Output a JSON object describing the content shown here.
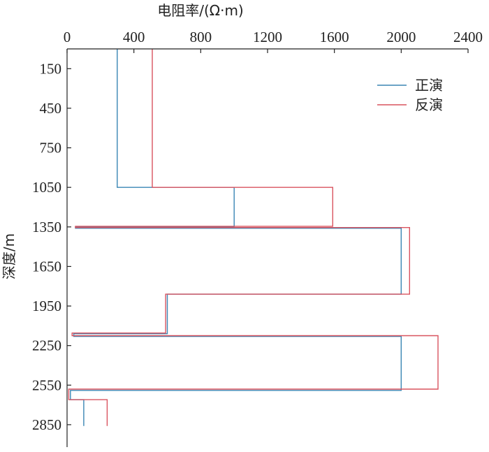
{
  "chart_data": {
    "type": "line",
    "xlabel": "电阻率/(Ω·m)",
    "ylabel": "深度/m",
    "x_axis_position": "top",
    "y_axis_inverted": true,
    "xlim": [
      0,
      2400
    ],
    "ylim": [
      0,
      3020
    ],
    "x_ticks": [
      "0",
      "400",
      "800",
      "1200",
      "1600",
      "2000",
      "2400"
    ],
    "y_ticks": [
      "150",
      "450",
      "750",
      "1050",
      "1350",
      "1650",
      "1950",
      "2250",
      "2550",
      "2850"
    ],
    "grid": false,
    "legend_position": "top-right",
    "series": [
      {
        "name": "正演",
        "color": "#3a86b4",
        "points": [
          [
            300,
            0
          ],
          [
            300,
            1050
          ],
          [
            1000,
            1050
          ],
          [
            1000,
            1350
          ],
          [
            50,
            1350
          ],
          [
            50,
            1360
          ],
          [
            2000,
            1360
          ],
          [
            2000,
            1860
          ],
          [
            600,
            1860
          ],
          [
            600,
            2160
          ],
          [
            40,
            2160
          ],
          [
            40,
            2180
          ],
          [
            2000,
            2180
          ],
          [
            2000,
            2590
          ],
          [
            20,
            2590
          ],
          [
            20,
            2660
          ],
          [
            100,
            2660
          ],
          [
            100,
            2860
          ]
        ]
      },
      {
        "name": "反演",
        "color": "#d9535f",
        "points": [
          [
            510,
            0
          ],
          [
            510,
            1050
          ],
          [
            1590,
            1050
          ],
          [
            1590,
            1345
          ],
          [
            50,
            1345
          ],
          [
            50,
            1355
          ],
          [
            2050,
            1355
          ],
          [
            2050,
            1860
          ],
          [
            590,
            1860
          ],
          [
            590,
            2155
          ],
          [
            30,
            2155
          ],
          [
            30,
            2175
          ],
          [
            2220,
            2175
          ],
          [
            2220,
            2580
          ],
          [
            10,
            2580
          ],
          [
            10,
            2660
          ],
          [
            240,
            2660
          ],
          [
            240,
            2860
          ]
        ]
      }
    ]
  }
}
